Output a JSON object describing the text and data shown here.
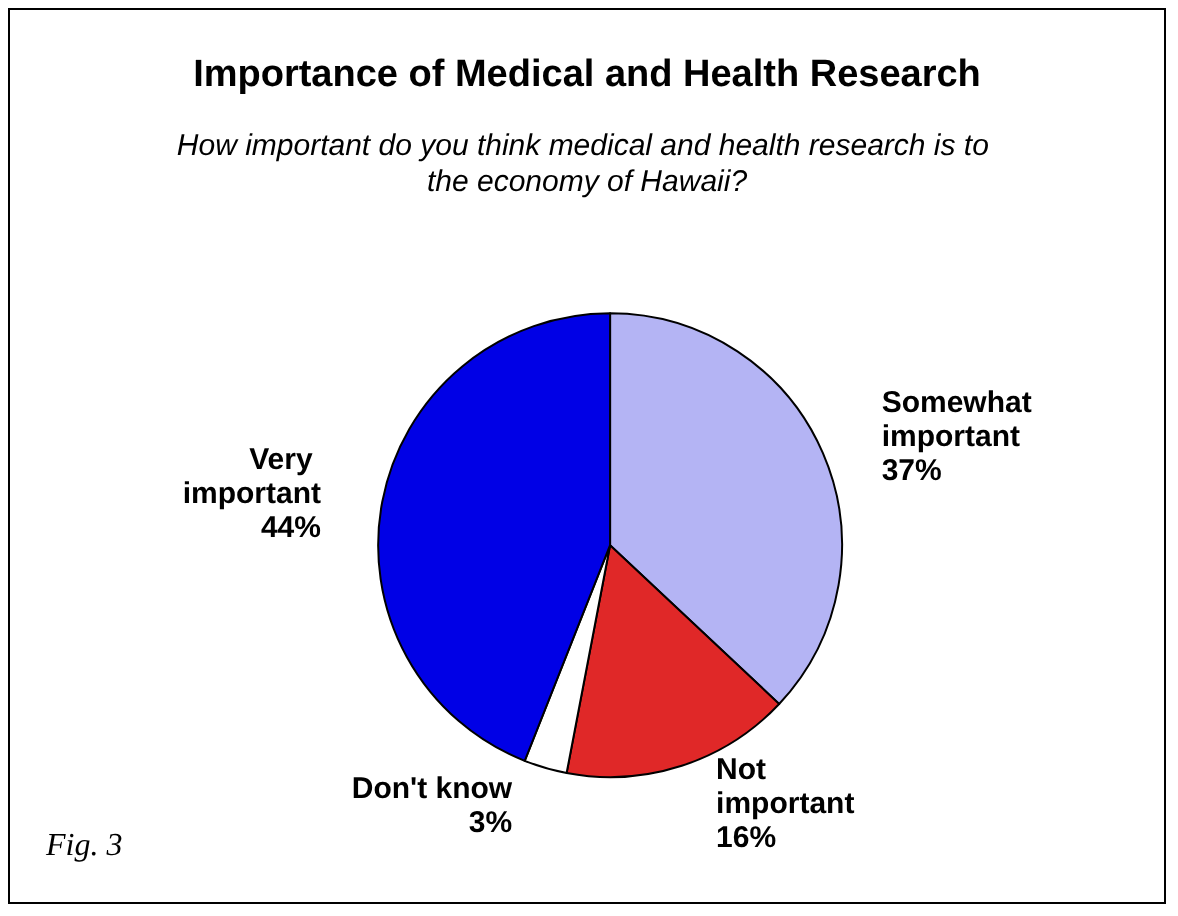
{
  "chart_data": {
    "type": "pie",
    "title": "Importance of Medical and Health Research",
    "subtitle": "How important do you think medical and health research is to the economy of Hawaii?",
    "categories": [
      "Somewhat important",
      "Not important",
      "Don't know",
      "Very important"
    ],
    "values": [
      37,
      16,
      3,
      44
    ],
    "colors": [
      "#b4b4f4",
      "#e02828",
      "#ffffff",
      "#0000e6"
    ],
    "annotations": [
      "Fig. 3"
    ],
    "legend": false,
    "value_labels": [
      "37%",
      "16%",
      "3%",
      "44%"
    ]
  }
}
